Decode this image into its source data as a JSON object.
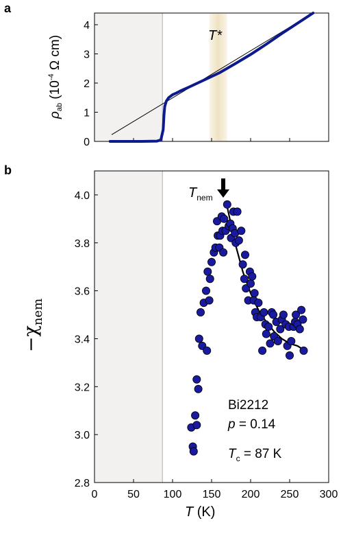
{
  "colors": {
    "data": "#1a1aa0",
    "data_line": "#0d1a8c",
    "fit": "#000000",
    "shade": "#f2f1ef",
    "tstar_band": "#efe2c2",
    "axis": "#000000"
  },
  "panel_a": {
    "letter": "a",
    "ylabel_symbol": "ρ",
    "ylabel_sub": "ab",
    "ylabel_rest": " (10",
    "ylabel_exp": "-4",
    "ylabel_unit": " Ω cm)",
    "tstar": "T*"
  },
  "panel_b": {
    "letter": "b",
    "ylabel": "−χ",
    "ylabel_sub": "nem",
    "xlabel_T": "T",
    "xlabel_unit": "  (K)",
    "tnem": "T",
    "tnem_sub": "nem",
    "material": "Bi2212",
    "p_label": "p",
    "p_value": " = 0.14",
    "tc_label": "T",
    "tc_sub": "c",
    "tc_value": " = 87 K"
  },
  "chart_data": [
    {
      "type": "line",
      "panel": "a",
      "xlim": [
        0,
        300
      ],
      "ylim": [
        0,
        4.4
      ],
      "y_ticks": [
        "0",
        "1",
        "2",
        "3",
        "4"
      ],
      "tc_K": 87,
      "tstar_range_K": [
        147,
        170
      ],
      "series": [
        {
          "kind": "resistivity",
          "x": [
            20,
            40,
            60,
            80,
            85,
            88,
            89,
            90,
            92,
            95,
            100,
            105,
            110,
            120,
            140,
            160,
            180,
            200,
            220,
            240,
            260,
            280
          ],
          "y": [
            0,
            0,
            0,
            0.01,
            0.05,
            0.4,
            0.9,
            1.2,
            1.38,
            1.5,
            1.6,
            1.66,
            1.73,
            1.85,
            2.1,
            2.35,
            2.66,
            2.98,
            3.33,
            3.7,
            4.05,
            4.4
          ]
        },
        {
          "kind": "linear-extrapolation",
          "x": [
            22,
            280
          ],
          "y": [
            0.23,
            4.4
          ]
        }
      ]
    },
    {
      "type": "scatter",
      "panel": "b",
      "xlim": [
        0,
        300
      ],
      "ylim": [
        2.8,
        4.1
      ],
      "x_ticks": [
        "0",
        "50",
        "100",
        "150",
        "200",
        "250",
        "300"
      ],
      "y_ticks": [
        "2.8",
        "3.0",
        "3.2",
        "3.4",
        "3.6",
        "3.8",
        "4.0"
      ],
      "tc_K": 87,
      "tnem_K": 168,
      "points": [
        [
          124,
          3.03
        ],
        [
          126,
          2.95
        ],
        [
          127,
          2.93
        ],
        [
          129,
          3.08
        ],
        [
          131,
          3.04
        ],
        [
          131,
          3.23
        ],
        [
          133,
          3.19
        ],
        [
          134,
          3.4
        ],
        [
          136,
          3.51
        ],
        [
          138,
          3.37
        ],
        [
          140,
          3.55
        ],
        [
          143,
          3.6
        ],
        [
          144,
          3.35
        ],
        [
          145,
          3.68
        ],
        [
          147,
          3.56
        ],
        [
          148,
          3.65
        ],
        [
          150,
          3.72
        ],
        [
          153,
          3.76
        ],
        [
          155,
          3.78
        ],
        [
          157,
          3.89
        ],
        [
          158,
          3.83
        ],
        [
          160,
          3.78
        ],
        [
          161,
          3.83
        ],
        [
          163,
          3.91
        ],
        [
          164,
          3.85
        ],
        [
          165,
          3.76
        ],
        [
          166,
          3.9
        ],
        [
          168,
          3.85
        ],
        [
          170,
          3.96
        ],
        [
          172,
          3.87
        ],
        [
          174,
          3.88
        ],
        [
          175,
          3.82
        ],
        [
          177,
          3.86
        ],
        [
          178,
          3.93
        ],
        [
          180,
          3.84
        ],
        [
          181,
          3.8
        ],
        [
          183,
          3.93
        ],
        [
          185,
          3.81
        ],
        [
          188,
          3.85
        ],
        [
          190,
          3.71
        ],
        [
          192,
          3.65
        ],
        [
          193,
          3.75
        ],
        [
          194,
          3.61
        ],
        [
          197,
          3.56
        ],
        [
          199,
          3.68
        ],
        [
          200,
          3.63
        ],
        [
          202,
          3.66
        ],
        [
          204,
          3.56
        ],
        [
          205,
          3.59
        ],
        [
          206,
          3.51
        ],
        [
          208,
          3.49
        ],
        [
          210,
          3.55
        ],
        [
          213,
          3.49
        ],
        [
          215,
          3.35
        ],
        [
          217,
          3.51
        ],
        [
          219,
          3.46
        ],
        [
          220,
          3.42
        ],
        [
          223,
          3.45
        ],
        [
          225,
          3.38
        ],
        [
          227,
          3.51
        ],
        [
          229,
          3.5
        ],
        [
          230,
          3.41
        ],
        [
          233,
          3.47
        ],
        [
          235,
          3.39
        ],
        [
          238,
          3.44
        ],
        [
          240,
          3.48
        ],
        [
          242,
          3.5
        ],
        [
          245,
          3.46
        ],
        [
          247,
          3.37
        ],
        [
          249,
          3.45
        ],
        [
          250,
          3.33
        ],
        [
          252,
          3.39
        ],
        [
          255,
          3.45
        ],
        [
          257,
          3.47
        ],
        [
          258,
          3.5
        ],
        [
          260,
          3.46
        ],
        [
          263,
          3.44
        ],
        [
          265,
          3.52
        ],
        [
          267,
          3.48
        ],
        [
          268,
          3.35
        ]
      ],
      "fit_curve": {
        "x": [
          170,
          180,
          190,
          200,
          210,
          220,
          230,
          240,
          250,
          260,
          265
        ],
        "y": [
          3.95,
          3.8,
          3.68,
          3.59,
          3.52,
          3.47,
          3.43,
          3.4,
          3.38,
          3.37,
          3.36
        ]
      }
    }
  ]
}
